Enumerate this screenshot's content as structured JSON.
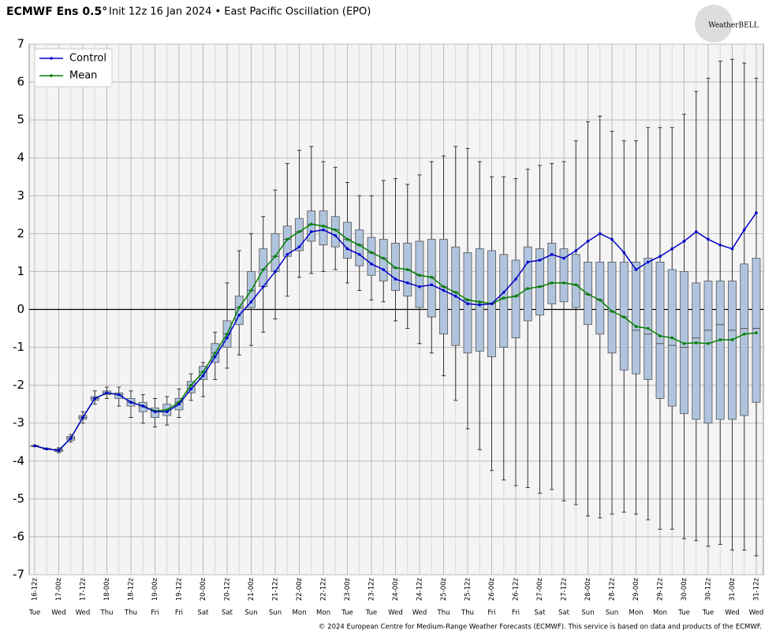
{
  "chart_data": {
    "type": "box",
    "title": "ECMWF Ens 0.5°",
    "subtitle": "Init 12z 16 Jan 2024 • East Pacific Oscillation (EPO)",
    "logo": "WeatherBELL",
    "footer": "© 2024 European Centre for Medium-Range Weather Forecasts (ECMWF). This service is based on data and products of the ECMWF.",
    "categories": [
      "16-12z",
      null,
      "17-00z",
      null,
      "17-12z",
      null,
      "18-00z",
      null,
      "18-12z",
      null,
      "19-00z",
      null,
      "19-12z",
      null,
      "20-00z",
      null,
      "20-12z",
      null,
      "21-00z",
      null,
      "21-12z",
      null,
      "22-00z",
      null,
      "22-12z",
      null,
      "23-00z",
      null,
      "23-12z",
      null,
      "24-00z",
      null,
      "24-12z",
      null,
      "25-00z",
      null,
      "25-12z",
      null,
      "26-00z",
      null,
      "26-12z",
      null,
      "27-00z",
      null,
      "27-12z",
      null,
      "28-00z",
      null,
      "28-12z",
      null,
      "29-00z",
      null,
      "29-12z",
      null,
      "30-00z",
      null,
      "30-12z",
      null,
      "31-00z",
      null,
      "31-12z"
    ],
    "weekdays": [
      "Tue",
      null,
      "Wed",
      null,
      "Wed",
      null,
      "Thu",
      null,
      "Thu",
      null,
      "Fri",
      null,
      "Fri",
      null,
      "Sat",
      null,
      "Sat",
      null,
      "Sun",
      null,
      "Sun",
      null,
      "Mon",
      null,
      "Mon",
      null,
      "Tue",
      null,
      "Tue",
      null,
      "Wed",
      null,
      "Wed",
      null,
      "Thu",
      null,
      "Thu",
      null,
      "Fri",
      null,
      "Fri",
      null,
      "Sat",
      null,
      "Sat",
      null,
      "Sun",
      null,
      "Sun",
      null,
      "Mon",
      null,
      "Mon",
      null,
      "Tue",
      null,
      "Tue",
      null,
      "Wed",
      null,
      "Wed"
    ],
    "ylim": [
      -7,
      7
    ],
    "yticks": [
      -7,
      -6,
      -5,
      -4,
      -3,
      -2,
      -1,
      0,
      1,
      2,
      3,
      4,
      5,
      6,
      7
    ],
    "grid": true,
    "legend": "upper-left",
    "box": {
      "color": "#b0c4de",
      "min": [
        -3.62,
        -3.7,
        -3.78,
        -3.5,
        -3.0,
        -2.5,
        -2.35,
        -2.55,
        -2.85,
        -3.0,
        -3.1,
        -3.05,
        -2.85,
        -2.4,
        -2.3,
        -1.85,
        -1.55,
        -1.2,
        -0.95,
        -0.6,
        -0.25,
        0.35,
        0.85,
        0.95,
        1.0,
        1.05,
        0.7,
        0.5,
        0.25,
        0.2,
        -0.3,
        -0.5,
        -0.9,
        -1.15,
        -1.75,
        -2.4,
        -3.15,
        -3.7,
        -4.25,
        -4.5,
        -4.65,
        -4.7,
        -4.85,
        -4.75,
        -5.05,
        -5.15,
        -5.45,
        -5.5,
        -5.4,
        -5.35,
        -5.4,
        -5.55,
        -5.8,
        -5.8,
        -6.05,
        -6.1,
        -6.25,
        -6.2,
        -6.35,
        -6.35,
        -6.5
      ],
      "q1": [
        -3.61,
        -3.69,
        -3.75,
        -3.45,
        -2.9,
        -2.4,
        -2.25,
        -2.35,
        -2.55,
        -2.7,
        -2.85,
        -2.8,
        -2.65,
        -2.2,
        -1.85,
        -1.4,
        -1.0,
        -0.4,
        0.05,
        0.6,
        1.0,
        1.4,
        1.55,
        1.8,
        1.7,
        1.65,
        1.35,
        1.15,
        0.9,
        0.75,
        0.5,
        0.35,
        0.05,
        -0.2,
        -0.65,
        -0.95,
        -1.15,
        -1.1,
        -1.25,
        -1.0,
        -0.75,
        -0.3,
        -0.15,
        0.15,
        0.2,
        0.05,
        -0.4,
        -0.65,
        -1.15,
        -1.6,
        -1.7,
        -1.85,
        -2.35,
        -2.55,
        -2.75,
        -2.9,
        -3.0,
        -2.9,
        -2.9,
        -2.8,
        -2.45
      ],
      "median": [
        -3.6,
        -3.68,
        -3.72,
        -3.4,
        -2.85,
        -2.35,
        -2.2,
        -2.25,
        -2.45,
        -2.55,
        -2.68,
        -2.65,
        -2.45,
        -2.0,
        -1.65,
        -1.15,
        -0.65,
        0.05,
        0.5,
        1.05,
        1.4,
        1.85,
        2.05,
        2.25,
        2.2,
        2.1,
        1.85,
        1.7,
        1.5,
        1.35,
        1.1,
        1.05,
        0.9,
        0.85,
        0.6,
        0.45,
        0.25,
        0.2,
        0.15,
        0.3,
        0.35,
        0.55,
        0.6,
        0.7,
        0.7,
        0.65,
        0.4,
        0.25,
        -0.05,
        -0.2,
        -0.55,
        -0.65,
        -0.9,
        -0.95,
        -1.0,
        -0.75,
        -0.55,
        -0.4,
        -0.55,
        -0.5,
        -0.5
      ],
      "q3": [
        -3.59,
        -3.67,
        -3.68,
        -3.35,
        -2.8,
        -2.3,
        -2.15,
        -2.2,
        -2.35,
        -2.45,
        -2.6,
        -2.5,
        -2.35,
        -1.9,
        -1.5,
        -0.9,
        -0.3,
        0.35,
        1.0,
        1.6,
        2.0,
        2.2,
        2.4,
        2.6,
        2.6,
        2.45,
        2.3,
        2.1,
        1.9,
        1.85,
        1.75,
        1.75,
        1.8,
        1.85,
        1.85,
        1.65,
        1.5,
        1.6,
        1.55,
        1.45,
        1.3,
        1.65,
        1.6,
        1.75,
        1.6,
        1.45,
        1.25,
        1.25,
        1.25,
        1.25,
        1.25,
        1.35,
        1.25,
        1.05,
        1.0,
        0.7,
        0.75,
        0.75,
        0.75,
        1.2,
        1.35
      ],
      "max": [
        -3.58,
        -3.66,
        -3.65,
        -3.3,
        -2.7,
        -2.15,
        -2.05,
        -2.05,
        -2.15,
        -2.25,
        -2.35,
        -2.3,
        -2.1,
        -1.7,
        -1.4,
        -0.6,
        0.7,
        1.55,
        2.0,
        2.45,
        3.15,
        3.85,
        4.2,
        4.3,
        3.9,
        3.75,
        3.35,
        3.0,
        3.0,
        3.4,
        3.45,
        3.3,
        3.55,
        3.9,
        4.05,
        4.3,
        4.25,
        3.9,
        3.5,
        3.5,
        3.45,
        3.7,
        3.8,
        3.85,
        3.9,
        4.45,
        4.95,
        5.1,
        4.7,
        4.45,
        4.45,
        4.8,
        4.8,
        4.8,
        5.15,
        5.75,
        6.1,
        6.55,
        6.6,
        6.5,
        6.1
      ]
    },
    "series": [
      {
        "name": "Control",
        "color": "#0000cc",
        "values": [
          -3.6,
          -3.68,
          -3.72,
          -3.4,
          -2.85,
          -2.35,
          -2.2,
          -2.25,
          -2.45,
          -2.55,
          -2.7,
          -2.7,
          -2.5,
          -2.1,
          -1.75,
          -1.25,
          -0.75,
          -0.15,
          0.2,
          0.6,
          1.0,
          1.45,
          1.65,
          2.05,
          2.1,
          1.95,
          1.6,
          1.45,
          1.2,
          1.05,
          0.8,
          0.7,
          0.6,
          0.65,
          0.5,
          0.35,
          0.15,
          0.12,
          0.15,
          0.45,
          0.8,
          1.25,
          1.3,
          1.45,
          1.35,
          1.55,
          1.8,
          2.0,
          1.85,
          1.5,
          1.05,
          1.25,
          1.4,
          1.6,
          1.8,
          2.05,
          1.85,
          1.7,
          1.6,
          2.1,
          2.55
        ]
      },
      {
        "name": "Mean",
        "color": "#008000",
        "values": [
          -3.6,
          -3.68,
          -3.72,
          -3.4,
          -2.85,
          -2.35,
          -2.2,
          -2.25,
          -2.45,
          -2.55,
          -2.68,
          -2.65,
          -2.45,
          -2.0,
          -1.65,
          -1.15,
          -0.65,
          0.05,
          0.5,
          1.05,
          1.4,
          1.85,
          2.05,
          2.25,
          2.2,
          2.1,
          1.85,
          1.7,
          1.5,
          1.35,
          1.1,
          1.05,
          0.9,
          0.85,
          0.6,
          0.45,
          0.25,
          0.2,
          0.15,
          0.3,
          0.35,
          0.55,
          0.6,
          0.7,
          0.7,
          0.65,
          0.4,
          0.25,
          -0.05,
          -0.2,
          -0.45,
          -0.5,
          -0.7,
          -0.75,
          -0.9,
          -0.88,
          -0.9,
          -0.8,
          -0.8,
          -0.65,
          -0.62
        ]
      }
    ]
  }
}
